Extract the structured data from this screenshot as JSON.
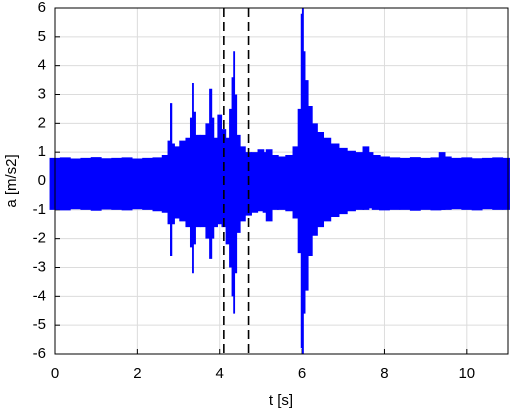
{
  "chart_data": {
    "type": "envelope",
    "xlabel": "t [s]",
    "ylabel": "a [m/s2]",
    "color": "#0000ff",
    "grid": true,
    "xlim": [
      0,
      11
    ],
    "xticks": [
      0,
      2,
      4,
      6,
      8,
      10
    ],
    "ylim": [
      -6,
      6
    ],
    "yticks": [
      -6,
      -5,
      -4,
      -3,
      -2,
      -1,
      0,
      1,
      2,
      3,
      4,
      5,
      6
    ],
    "vlines": [
      4.1,
      4.7
    ],
    "x": [
      0,
      0.25,
      0.5,
      0.75,
      1,
      1.25,
      1.5,
      1.75,
      2,
      2.25,
      2.5,
      2.7,
      2.78,
      2.82,
      2.86,
      2.95,
      3.1,
      3.25,
      3.32,
      3.35,
      3.38,
      3.45,
      3.6,
      3.72,
      3.78,
      3.82,
      3.9,
      4.0,
      4.1,
      4.2,
      4.27,
      4.32,
      4.35,
      4.38,
      4.45,
      4.55,
      4.7,
      4.85,
      5.0,
      5.1,
      5.2,
      5.35,
      5.5,
      5.7,
      5.85,
      5.95,
      6.0,
      6.02,
      6.05,
      6.1,
      6.2,
      6.3,
      6.45,
      6.6,
      6.8,
      7.0,
      7.2,
      7.4,
      7.55,
      7.65,
      7.8,
      8.0,
      8.25,
      8.5,
      8.75,
      9.0,
      9.25,
      9.4,
      9.5,
      9.75,
      10,
      10.25,
      10.5,
      10.75,
      11
    ],
    "upper": [
      0.8,
      0.82,
      0.78,
      0.8,
      0.83,
      0.79,
      0.8,
      0.82,
      0.78,
      0.8,
      0.82,
      0.9,
      1.4,
      2.7,
      1.3,
      1.2,
      1.4,
      1.5,
      2.2,
      3.4,
      2.4,
      1.6,
      1.6,
      2.0,
      3.2,
      2.2,
      1.5,
      2.3,
      1.8,
      1.5,
      2.5,
      3.6,
      4.5,
      3.0,
      1.6,
      1.2,
      1.0,
      1.0,
      1.1,
      1.0,
      1.1,
      0.9,
      0.85,
      0.9,
      1.2,
      2.5,
      5.8,
      6.0,
      4.5,
      3.5,
      2.6,
      2.0,
      1.7,
      1.5,
      1.3,
      1.15,
      1.05,
      1.0,
      1.2,
      1.0,
      0.9,
      0.85,
      0.82,
      0.8,
      0.83,
      0.8,
      0.82,
      1.0,
      0.85,
      0.8,
      0.82,
      0.79,
      0.8,
      0.82,
      0.8
    ],
    "lower": [
      -1.0,
      -1.02,
      -0.98,
      -1.0,
      -1.03,
      -0.99,
      -1.0,
      -1.02,
      -0.98,
      -1.0,
      -1.05,
      -1.1,
      -1.5,
      -2.6,
      -1.5,
      -1.3,
      -1.4,
      -1.6,
      -2.3,
      -3.2,
      -2.2,
      -1.6,
      -1.6,
      -2.0,
      -2.7,
      -2.0,
      -1.6,
      -1.5,
      -1.6,
      -2.2,
      -3.0,
      -4.0,
      -4.6,
      -3.2,
      -1.8,
      -1.4,
      -1.2,
      -1.1,
      -1.05,
      -1.1,
      -1.4,
      -1.0,
      -1.0,
      -1.05,
      -1.3,
      -2.5,
      -5.8,
      -6.0,
      -4.6,
      -3.8,
      -2.6,
      -1.9,
      -1.6,
      -1.4,
      -1.25,
      -1.15,
      -1.05,
      -1.0,
      -1.0,
      -0.95,
      -1.0,
      -1.02,
      -1.0,
      -1.0,
      -1.03,
      -1.0,
      -1.02,
      -1.0,
      -1.0,
      -0.98,
      -1.0,
      -1.02,
      -0.98,
      -1.0,
      -1.0
    ]
  }
}
